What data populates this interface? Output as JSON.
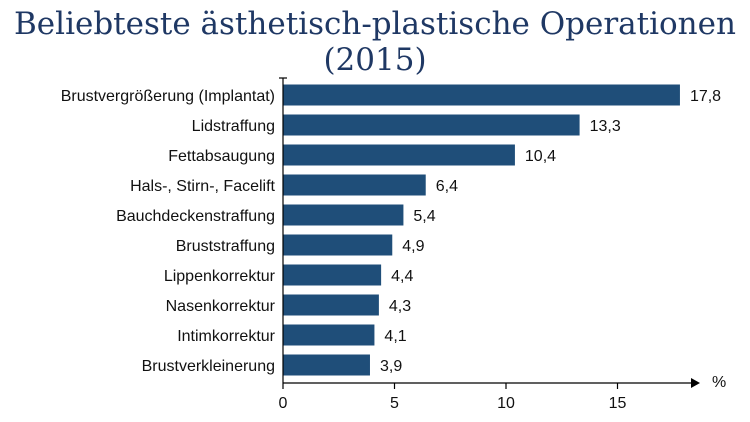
{
  "chart_data": {
    "type": "bar",
    "orientation": "horizontal",
    "title": "Beliebteste ästhetisch-plastische Operationen (2015)",
    "categories": [
      "Brustvergrößerung (Implantat)",
      "Lidstraffung",
      "Fettabsaugung",
      "Hals-, Stirn-, Facelift",
      "Bauchdeckenstraffung",
      "Bruststraffung",
      "Lippenkorrektur",
      "Nasenkorrektur",
      "Intimkorrektur",
      "Brustverkleinerung"
    ],
    "values": [
      17.8,
      13.3,
      10.4,
      6.4,
      5.4,
      4.9,
      4.4,
      4.3,
      4.1,
      3.9
    ],
    "value_labels": [
      "17,8",
      "13,3",
      "10,4",
      "6,4",
      "5,4",
      "4,9",
      "4,4",
      "4,3",
      "4,1",
      "3,9"
    ],
    "x_ticks": [
      0,
      5,
      10,
      15
    ],
    "x_tick_labels": [
      "0",
      "5",
      "10",
      "15"
    ],
    "xlabel": "%",
    "xlim": [
      0,
      18.5
    ],
    "bar_color": "#1f4e79",
    "title_color": "#1f3864",
    "grid": false
  }
}
